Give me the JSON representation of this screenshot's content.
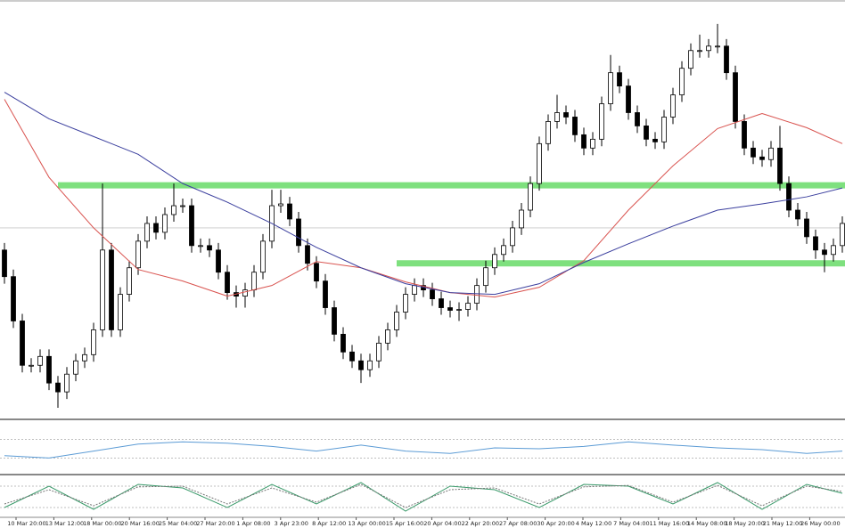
{
  "chart_data": {
    "type": "candlestick",
    "ylim": [
      0,
      468
    ],
    "open": [
      190,
      160,
      110,
      60,
      60,
      70,
      40,
      30,
      50,
      65,
      72,
      100,
      190,
      100,
      140,
      170,
      200,
      220,
      210,
      230,
      240,
      240,
      195,
      195,
      190,
      165,
      142,
      138,
      145,
      165,
      200,
      240,
      242,
      225,
      195,
      175,
      155,
      125,
      95,
      75,
      65,
      55,
      65,
      85,
      100,
      120,
      140,
      150,
      145,
      135,
      125,
      122,
      123,
      130,
      150,
      170,
      185,
      195,
      215,
      235,
      265,
      310,
      335,
      345,
      340,
      320,
      305,
      315,
      355,
      390,
      375,
      345,
      330,
      315,
      312,
      340,
      365,
      395,
      415,
      415,
      420,
      420,
      390,
      335,
      305,
      295,
      292,
      305,
      265,
      235,
      225,
      205,
      190,
      185,
      195
    ],
    "high": [
      198,
      168,
      118,
      68,
      78,
      78,
      48,
      58,
      73,
      80,
      108,
      265,
      198,
      148,
      178,
      208,
      228,
      228,
      238,
      265,
      248,
      248,
      203,
      203,
      198,
      173,
      150,
      153,
      173,
      208,
      258,
      258,
      250,
      233,
      203,
      183,
      163,
      133,
      103,
      83,
      73,
      73,
      93,
      108,
      128,
      148,
      158,
      158,
      153,
      143,
      133,
      131,
      138,
      158,
      178,
      193,
      203,
      223,
      243,
      273,
      318,
      343,
      365,
      353,
      348,
      328,
      323,
      363,
      410,
      398,
      383,
      353,
      338,
      323,
      348,
      373,
      403,
      423,
      433,
      428,
      445,
      428,
      398,
      343,
      313,
      303,
      313,
      330,
      273,
      243,
      233,
      213,
      198,
      203,
      228
    ],
    "low": [
      152,
      102,
      52,
      52,
      52,
      32,
      12,
      22,
      42,
      57,
      64,
      92,
      92,
      92,
      132,
      162,
      192,
      202,
      202,
      222,
      232,
      187,
      187,
      182,
      157,
      134,
      125,
      125,
      137,
      157,
      192,
      232,
      217,
      187,
      167,
      147,
      117,
      87,
      67,
      57,
      40,
      47,
      57,
      77,
      92,
      112,
      132,
      137,
      127,
      117,
      114,
      110,
      115,
      122,
      142,
      162,
      177,
      187,
      207,
      227,
      257,
      302,
      327,
      332,
      312,
      297,
      297,
      307,
      347,
      367,
      337,
      322,
      307,
      304,
      304,
      332,
      357,
      387,
      407,
      407,
      412,
      382,
      327,
      297,
      287,
      284,
      284,
      257,
      227,
      217,
      197,
      180,
      165,
      177,
      187
    ],
    "close": [
      160,
      110,
      60,
      60,
      70,
      40,
      30,
      50,
      65,
      72,
      100,
      190,
      100,
      140,
      170,
      200,
      220,
      210,
      230,
      240,
      240,
      195,
      195,
      190,
      165,
      142,
      138,
      145,
      165,
      200,
      240,
      242,
      225,
      195,
      175,
      155,
      125,
      95,
      75,
      65,
      55,
      65,
      85,
      100,
      120,
      140,
      150,
      145,
      135,
      125,
      122,
      123,
      130,
      150,
      170,
      185,
      195,
      215,
      235,
      265,
      310,
      335,
      345,
      340,
      320,
      305,
      315,
      355,
      390,
      375,
      345,
      330,
      315,
      312,
      340,
      365,
      395,
      415,
      415,
      420,
      420,
      390,
      335,
      305,
      295,
      292,
      305,
      265,
      235,
      225,
      205,
      190,
      185,
      195,
      220
    ],
    "moving_averages": [
      {
        "color": "#d9534f",
        "x": [
          0,
          5,
          10,
          15,
          20,
          25,
          30,
          35,
          40,
          45,
          50,
          55,
          60,
          65,
          70,
          75,
          80,
          85,
          90,
          94
        ],
        "values": [
          360,
          272,
          215,
          168,
          155,
          138,
          150,
          177,
          170,
          154,
          142,
          137,
          148,
          178,
          235,
          285,
          327,
          344,
          328,
          310
        ]
      },
      {
        "color": "#3b3f9e",
        "x": [
          0,
          5,
          10,
          15,
          20,
          25,
          30,
          35,
          40,
          45,
          50,
          55,
          60,
          65,
          70,
          75,
          80,
          85,
          90,
          94
        ],
        "values": [
          368,
          338,
          318,
          298,
          265,
          244,
          220,
          193,
          170,
          152,
          142,
          140,
          152,
          176,
          197,
          217,
          235,
          242,
          250,
          260
        ]
      }
    ],
    "levels": [
      {
        "value": 263,
        "from": 6,
        "color": "#7ee07e"
      },
      {
        "value": 175,
        "from": 44,
        "color": "#7ee07e"
      }
    ],
    "price_line": 215,
    "indicators": [
      {
        "ylim": [
          0,
          100
        ],
        "levels": [
          30,
          70
        ],
        "series": [
          {
            "color": "#5b9bd5",
            "dash": false,
            "x": [
              0,
              5,
              10,
              15,
              20,
              25,
              30,
              35,
              40,
              45,
              50,
              55,
              60,
              65,
              70,
              75,
              80,
              85,
              90,
              94
            ],
            "values": [
              35,
              30,
              45,
              60,
              65,
              62,
              55,
              45,
              58,
              45,
              40,
              52,
              50,
              55,
              65,
              58,
              52,
              48,
              40,
              45
            ]
          }
        ]
      },
      {
        "ylim": [
          0,
          100
        ],
        "levels": [
          20,
          80
        ],
        "series": [
          {
            "color": "#3a9a6a",
            "dash": false,
            "x": [
              0,
              5,
              10,
              15,
              20,
              25,
              30,
              35,
              40,
              45,
              50,
              55,
              60,
              65,
              70,
              75,
              80,
              85,
              90,
              94
            ],
            "values": [
              20,
              80,
              15,
              85,
              75,
              20,
              85,
              30,
              90,
              10,
              80,
              70,
              20,
              85,
              80,
              30,
              90,
              15,
              85,
              60
            ]
          },
          {
            "color": "#777777",
            "dash": true,
            "x": [
              0,
              5,
              10,
              15,
              20,
              25,
              30,
              35,
              40,
              45,
              50,
              55,
              60,
              65,
              70,
              75,
              80,
              85,
              90,
              94
            ],
            "values": [
              30,
              70,
              25,
              78,
              80,
              30,
              75,
              35,
              85,
              20,
              70,
              75,
              30,
              78,
              82,
              35,
              82,
              25,
              80,
              65
            ]
          }
        ]
      }
    ],
    "x_labels": [
      "10 Mar 20:00",
      "13 Mar 12:00",
      "18 Mar 00:00",
      "20 Mar 16:00",
      "25 Mar 04:00",
      "27 Mar 20:00",
      "1 Apr 08:00",
      "3 Apr 23:00",
      "8 Apr 12:00",
      "13 Apr 00:00",
      "15 Apr 16:00",
      "20 Apr 04:00",
      "22 Apr 20:00",
      "27 Apr 08:00",
      "30 Apr 20:00",
      "4 May 12:00",
      "7 May 04:00",
      "11 May 16:00",
      "14 May 08:00",
      "18 May 20:00",
      "21 May 12:00",
      "26 May 00:00"
    ]
  }
}
